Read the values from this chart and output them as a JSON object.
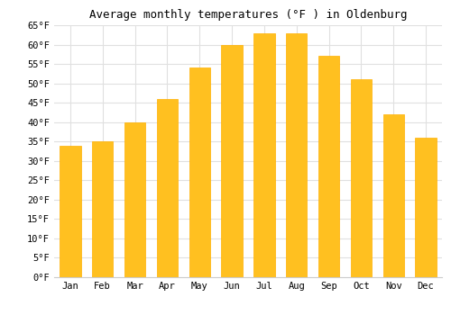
{
  "title": "Average monthly temperatures (°F ) in Oldenburg",
  "months": [
    "Jan",
    "Feb",
    "Mar",
    "Apr",
    "May",
    "Jun",
    "Jul",
    "Aug",
    "Sep",
    "Oct",
    "Nov",
    "Dec"
  ],
  "values": [
    34,
    35,
    40,
    46,
    54,
    60,
    63,
    63,
    57,
    51,
    42,
    36
  ],
  "bar_color": "#FFC020",
  "bar_edge_color": "#FFB000",
  "background_color": "#FFFFFF",
  "grid_color": "#E0E0E0",
  "ylim": [
    0,
    65
  ],
  "yticks": [
    0,
    5,
    10,
    15,
    20,
    25,
    30,
    35,
    40,
    45,
    50,
    55,
    60,
    65
  ],
  "title_fontsize": 9,
  "tick_fontsize": 7.5,
  "title_font": "monospace",
  "tick_font": "monospace"
}
